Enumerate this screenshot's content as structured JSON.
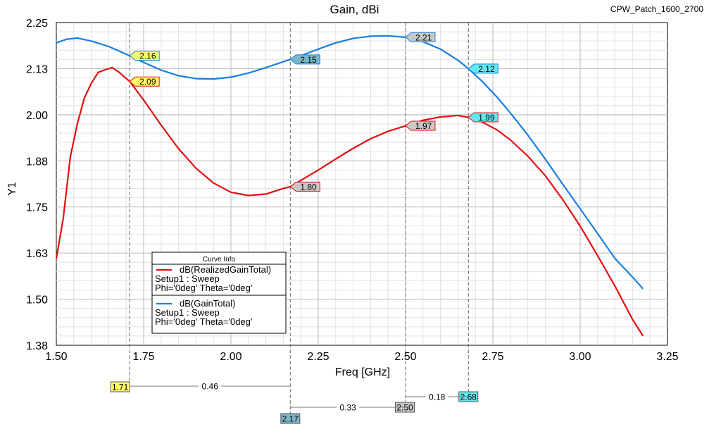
{
  "project_name": "CPW_Patch_1600_2700",
  "chart_data": {
    "type": "line",
    "title": "Gain, dBi",
    "xlabel": "Freq [GHz]",
    "ylabel": "Y1",
    "xlim": [
      1.5,
      3.25
    ],
    "ylim": [
      1.375,
      2.25
    ],
    "x_ticks": [
      "1.50",
      "1.75",
      "2.00",
      "2.25",
      "2.50",
      "2.75",
      "3.00",
      "3.25"
    ],
    "y_ticks": [
      "2.25",
      "2.13",
      "2.00",
      "1.88",
      "1.75",
      "1.63",
      "1.50",
      "1.38"
    ],
    "grid": true,
    "legend": {
      "title": "Curve Info",
      "placement": "lower-left",
      "entries": [
        {
          "name": "dB(RealizedGainTotal)",
          "line2": "Setup1 : Sweep",
          "line3": "Phi='0deg' Theta='0deg'"
        },
        {
          "name": "dB(GainTotal)",
          "line2": "Setup1 : Sweep",
          "line3": "Phi='0deg' Theta='0deg'"
        }
      ]
    },
    "series": [
      {
        "name": "dB(RealizedGainTotal)",
        "color": "#e01010",
        "x": [
          1.5,
          1.52,
          1.54,
          1.56,
          1.58,
          1.6,
          1.62,
          1.64,
          1.66,
          1.68,
          1.71,
          1.75,
          1.8,
          1.85,
          1.9,
          1.95,
          2.0,
          2.05,
          2.1,
          2.15,
          2.17,
          2.2,
          2.25,
          2.3,
          2.35,
          2.4,
          2.45,
          2.5,
          2.55,
          2.6,
          2.65,
          2.68,
          2.72,
          2.76,
          2.8,
          2.85,
          2.9,
          2.95,
          3.0,
          3.05,
          3.1,
          3.15,
          3.18
        ],
        "y": [
          1.61,
          1.72,
          1.885,
          1.975,
          2.045,
          2.085,
          2.115,
          2.122,
          2.128,
          2.115,
          2.09,
          2.04,
          1.972,
          1.908,
          1.855,
          1.815,
          1.79,
          1.781,
          1.785,
          1.8,
          1.805,
          1.822,
          1.85,
          1.88,
          1.909,
          1.935,
          1.955,
          1.97,
          1.985,
          1.994,
          1.998,
          1.993,
          1.98,
          1.96,
          1.932,
          1.888,
          1.835,
          1.77,
          1.698,
          1.618,
          1.535,
          1.445,
          1.4
        ]
      },
      {
        "name": "dB(GainTotal)",
        "color": "#1a7fe0",
        "x": [
          1.5,
          1.53,
          1.56,
          1.6,
          1.65,
          1.71,
          1.75,
          1.8,
          1.85,
          1.9,
          1.95,
          2.0,
          2.05,
          2.1,
          2.17,
          2.2,
          2.25,
          2.3,
          2.35,
          2.4,
          2.45,
          2.5,
          2.55,
          2.6,
          2.65,
          2.68,
          2.72,
          2.76,
          2.8,
          2.85,
          2.9,
          2.95,
          3.0,
          3.05,
          3.1,
          3.15,
          3.18
        ],
        "y": [
          2.195,
          2.205,
          2.208,
          2.2,
          2.185,
          2.16,
          2.142,
          2.121,
          2.106,
          2.098,
          2.097,
          2.102,
          2.113,
          2.128,
          2.15,
          2.16,
          2.178,
          2.195,
          2.207,
          2.213,
          2.214,
          2.21,
          2.198,
          2.178,
          2.148,
          2.125,
          2.09,
          2.05,
          2.005,
          1.945,
          1.88,
          1.812,
          1.745,
          1.678,
          1.61,
          1.56,
          1.528
        ]
      }
    ],
    "point_markers": [
      {
        "series": 0,
        "x": 1.71,
        "label": "2.09",
        "fill": "#ffff66"
      },
      {
        "series": 1,
        "x": 1.71,
        "label": "2.16",
        "fill": "#ffff66"
      },
      {
        "series": 0,
        "x": 2.17,
        "label": "1.80",
        "fill": "#c8c8c8"
      },
      {
        "series": 1,
        "x": 2.17,
        "label": "2.15",
        "fill": "#7ab8c8"
      },
      {
        "series": 0,
        "x": 2.5,
        "label": "1.97",
        "fill": "#c8c8c8"
      },
      {
        "series": 1,
        "x": 2.5,
        "label": "2.21",
        "fill": "#c8c8c8"
      },
      {
        "series": 0,
        "x": 2.68,
        "label": "1.99",
        "fill": "#66e8f0"
      },
      {
        "series": 1,
        "x": 2.68,
        "label": "2.12",
        "fill": "#66e8f0"
      }
    ],
    "x_markers": [
      {
        "x": 1.71,
        "label": "1.71",
        "fill": "#ffff66"
      },
      {
        "x": 2.17,
        "label": "2.17",
        "fill": "#7ab8c8"
      },
      {
        "x": 2.5,
        "label": "2.50",
        "fill": "#c8c8c8"
      },
      {
        "x": 2.68,
        "label": "2.68",
        "fill": "#66e8f0"
      }
    ],
    "deltas": [
      {
        "from": 1.71,
        "to": 2.17,
        "label": "0.46"
      },
      {
        "from": 2.17,
        "to": 2.5,
        "label": "0.33"
      },
      {
        "from": 2.5,
        "to": 2.68,
        "label": "0.18"
      }
    ]
  }
}
